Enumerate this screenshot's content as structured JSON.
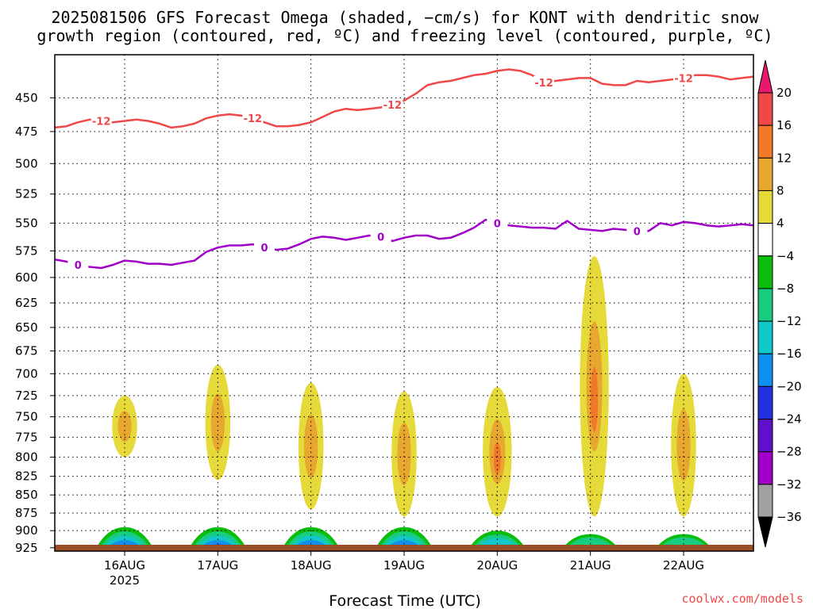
{
  "title": {
    "line1": "2025081506 GFS Forecast Omega (shaded, −cm/s) for KONT with dendritic snow",
    "line2": "growth region (contoured, red, ºC) and freezing level (contoured, purple, ºC)"
  },
  "credit": "coolwx.com/models",
  "colors": {
    "dgz_contour": "#f04848",
    "freezing_contour": "#a000c8",
    "ground": "#9b4f26",
    "grid": "#000000"
  },
  "chart_data": {
    "type": "heatmap",
    "title": "2025081506 GFS Forecast Omega (shaded, −cm/s) for KONT with dendritic snow growth region (contoured, red, ºC) and freezing level (contoured, purple, ºC)",
    "xlabel": "Forecast Time (UTC)",
    "ylabel": "",
    "y_scale": "log-pressure",
    "y_inverted": true,
    "xlim_hours": [
      0,
      180
    ],
    "ylim_hpa": [
      930,
      420
    ],
    "x_ticks": [
      {
        "hour": 18,
        "label": "16AUG",
        "sublabel": "2025"
      },
      {
        "hour": 42,
        "label": "17AUG",
        "sublabel": ""
      },
      {
        "hour": 66,
        "label": "18AUG",
        "sublabel": ""
      },
      {
        "hour": 90,
        "label": "19AUG",
        "sublabel": ""
      },
      {
        "hour": 114,
        "label": "20AUG",
        "sublabel": ""
      },
      {
        "hour": 138,
        "label": "21AUG",
        "sublabel": ""
      },
      {
        "hour": 162,
        "label": "22AUG",
        "sublabel": ""
      }
    ],
    "y_ticks": [
      "450",
      "475",
      "500",
      "525",
      "550",
      "575",
      "600",
      "625",
      "650",
      "675",
      "700",
      "725",
      "750",
      "775",
      "800",
      "825",
      "850",
      "875",
      "900",
      "925"
    ],
    "y_tick_values": [
      450,
      475,
      500,
      525,
      550,
      575,
      600,
      625,
      650,
      675,
      700,
      725,
      750,
      775,
      800,
      825,
      850,
      875,
      900,
      925
    ],
    "grid": true,
    "colorbar": {
      "labels": [
        "20",
        "16",
        "12",
        "8",
        "4",
        "−4",
        "−8",
        "−12",
        "−16",
        "−20",
        "−24",
        "−28",
        "−32",
        "−36"
      ],
      "label_values": [
        20,
        16,
        12,
        8,
        4,
        -4,
        -8,
        -12,
        -16,
        -20,
        -24,
        -28,
        -32,
        -36
      ],
      "colors": [
        "#e8186e",
        "#f04848",
        "#f07828",
        "#e8a830",
        "#e6da3a",
        "#ffffff",
        "#0cbe0c",
        "#18cc80",
        "#10c8c8",
        "#1090ee",
        "#2030e0",
        "#6010c8",
        "#a000c8",
        "#a0a0a0",
        "#000000"
      ]
    },
    "omega_level_colors": {
      "4": "#e6da3a",
      "8": "#e8a830",
      "12": "#f07828",
      "16": "#f04848",
      "-4": "#0cbe0c",
      "-8": "#18cc80",
      "-12": "#10c8c8",
      "-16": "#1090ee",
      "-20": "#2030e0"
    },
    "series": [
      {
        "name": "-12",
        "role": "dendritic snow growth region",
        "contour_labels": [
          "-12",
          "-12",
          "-12",
          "-12",
          "-12"
        ],
        "x": [
          0,
          3,
          6,
          9,
          12,
          15,
          18,
          21,
          24,
          27,
          30,
          33,
          36,
          39,
          42,
          45,
          48,
          51,
          54,
          57,
          60,
          63,
          66,
          69,
          72,
          75,
          78,
          81,
          84,
          87,
          90,
          93,
          96,
          99,
          102,
          105,
          108,
          111,
          114,
          117,
          120,
          123,
          126,
          129,
          132,
          135,
          138,
          141,
          144,
          147,
          150,
          153,
          156,
          159,
          162,
          165,
          168,
          171,
          174,
          177,
          180
        ],
        "y": [
          472,
          471,
          468,
          466,
          467,
          468,
          467,
          466,
          467,
          469,
          472,
          471,
          469,
          465,
          463,
          462,
          463,
          465,
          468,
          471,
          471,
          470,
          468,
          464,
          460,
          458,
          459,
          458,
          457,
          455,
          452,
          447,
          441,
          439,
          438,
          436,
          434,
          433,
          431,
          430,
          431,
          434,
          439,
          438,
          437,
          436,
          436,
          440,
          441,
          441,
          438,
          439,
          438,
          437,
          436,
          434,
          434,
          435,
          437,
          436,
          435
        ]
      },
      {
        "name": "0",
        "role": "freezing level",
        "contour_labels": [
          "0",
          "0",
          "0",
          "0",
          "0"
        ],
        "x": [
          0,
          3,
          6,
          9,
          12,
          15,
          18,
          21,
          24,
          27,
          30,
          33,
          36,
          39,
          42,
          45,
          48,
          51,
          54,
          57,
          60,
          63,
          66,
          69,
          72,
          75,
          78,
          81,
          84,
          87,
          90,
          93,
          96,
          99,
          102,
          105,
          108,
          111,
          114,
          117,
          120,
          123,
          126,
          129,
          132,
          135,
          138,
          141,
          144,
          147,
          150,
          153,
          156,
          159,
          162,
          165,
          168,
          171,
          174,
          177,
          180
        ],
        "y": [
          583,
          585,
          588,
          590,
          591,
          588,
          584,
          585,
          587,
          587,
          588,
          586,
          584,
          576,
          572,
          570,
          570,
          569,
          572,
          574,
          573,
          569,
          564,
          562,
          563,
          565,
          563,
          561,
          562,
          566,
          563,
          561,
          561,
          564,
          563,
          559,
          554,
          547,
          550,
          552,
          553,
          554,
          554,
          555,
          548,
          555,
          556,
          557,
          555,
          556,
          557,
          557,
          550,
          552,
          549,
          550,
          552,
          553,
          552,
          551,
          552
        ]
      }
    ],
    "features": [
      {
        "kind": "updraft",
        "value": 8,
        "hour": 18,
        "p_top": 725,
        "p_bottom": 800,
        "peak": 8
      },
      {
        "kind": "updraft",
        "value": 8,
        "hour": 42,
        "p_top": 690,
        "p_bottom": 830,
        "peak": 8
      },
      {
        "kind": "updraft",
        "value": 8,
        "hour": 66,
        "p_top": 710,
        "p_bottom": 870,
        "peak": 8
      },
      {
        "kind": "updraft",
        "value": 8,
        "hour": 90,
        "p_top": 720,
        "p_bottom": 880,
        "peak": 8
      },
      {
        "kind": "updraft",
        "value": 12,
        "hour": 114,
        "p_top": 715,
        "p_bottom": 880,
        "peak": 12
      },
      {
        "kind": "updraft",
        "value": 12,
        "hour": 139,
        "p_top": 580,
        "p_bottom": 880,
        "peak": 12
      },
      {
        "kind": "updraft",
        "value": 8,
        "hour": 162,
        "p_top": 700,
        "p_bottom": 880,
        "peak": 8
      },
      {
        "kind": "downdraft",
        "value": -16,
        "hour": 18,
        "p_top": 895,
        "p_bottom": 930,
        "peak": -16
      },
      {
        "kind": "downdraft",
        "value": -20,
        "hour": 42,
        "p_top": 895,
        "p_bottom": 930,
        "peak": -20
      },
      {
        "kind": "downdraft",
        "value": -16,
        "hour": 66,
        "p_top": 895,
        "p_bottom": 930,
        "peak": -16
      },
      {
        "kind": "downdraft",
        "value": -16,
        "hour": 90,
        "p_top": 895,
        "p_bottom": 930,
        "peak": -16
      },
      {
        "kind": "downdraft",
        "value": -12,
        "hour": 114,
        "p_top": 900,
        "p_bottom": 930,
        "peak": -12
      },
      {
        "kind": "downdraft",
        "value": -8,
        "hour": 138,
        "p_top": 905,
        "p_bottom": 930,
        "peak": -8
      },
      {
        "kind": "downdraft",
        "value": -8,
        "hour": 162,
        "p_top": 905,
        "p_bottom": 930,
        "peak": -8
      }
    ]
  }
}
